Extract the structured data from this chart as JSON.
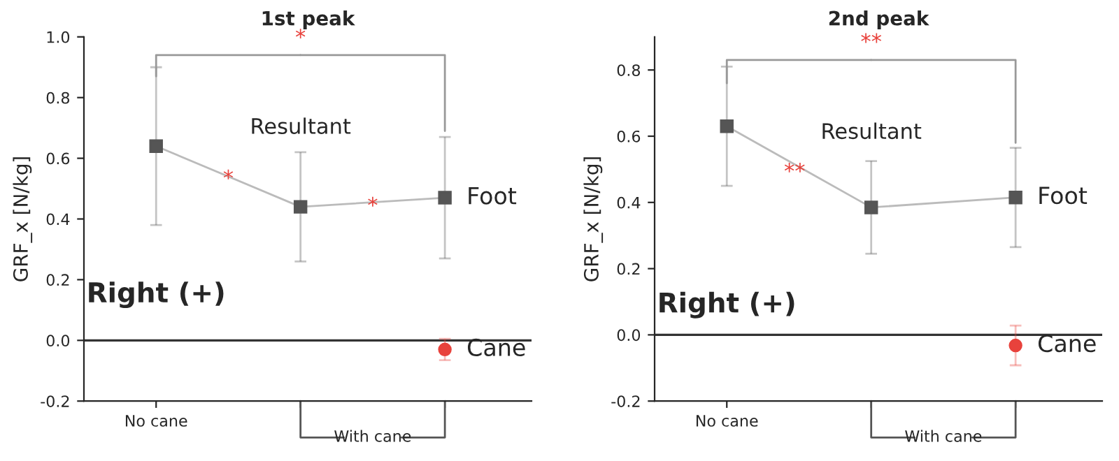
{
  "chart_data": [
    {
      "type": "line",
      "title": "1st peak",
      "ylabel": "GRF_x [N/kg]",
      "categories": [
        "No cane",
        null,
        null
      ],
      "series": [
        {
          "name": "Foot",
          "color": "#555555",
          "values": [
            0.64,
            0.44,
            0.47
          ],
          "errors": [
            0.26,
            0.18,
            0.2
          ],
          "marker": "square"
        },
        {
          "name": "Cane",
          "color": "#e8423c",
          "values": [
            null,
            null,
            -0.03
          ],
          "errors": [
            null,
            null,
            0.035
          ],
          "marker": "circle",
          "type": "scatter"
        }
      ],
      "annotations": [
        "*",
        "*",
        "*",
        "Resultant",
        "Right (+)",
        "With cane"
      ],
      "ref_lines": [
        {
          "axis": "y",
          "value": 0,
          "color": "#333333"
        }
      ],
      "ylim": [
        -0.2,
        1.0
      ],
      "yticks": [
        {
          "value": -0.2,
          "label": "-0.2"
        },
        {
          "value": 0,
          "label": "0.0"
        },
        0.2,
        0.4,
        0.6,
        0.8,
        {
          "value": 1,
          "label": "1.0"
        }
      ],
      "grid": false,
      "legend": false
    },
    {
      "type": "line",
      "title": "2nd peak",
      "ylabel": "GRF_x [N/kg]",
      "categories": [
        "No cane",
        null,
        null
      ],
      "series": [
        {
          "name": "Foot",
          "color": "#555555",
          "values": [
            0.63,
            0.385,
            0.415
          ],
          "errors": [
            0.18,
            0.14,
            0.15
          ],
          "marker": "square"
        },
        {
          "name": "Cane",
          "color": "#e8423c",
          "values": [
            null,
            null,
            -0.032
          ],
          "errors": [
            null,
            null,
            0.06
          ],
          "marker": "circle",
          "type": "scatter"
        }
      ],
      "annotations": [
        "**",
        "**",
        "Resultant",
        "Right (+)",
        "With cane"
      ],
      "ref_lines": [
        {
          "axis": "y",
          "value": 0,
          "color": "#333333"
        }
      ],
      "ylim": [
        -0.2,
        0.9
      ],
      "yticks": [
        {
          "value": -0.2,
          "label": "-0.2"
        },
        {
          "value": 0,
          "label": "0.0"
        },
        0.2,
        0.4,
        0.6,
        0.8
      ],
      "grid": false,
      "legend": false
    }
  ]
}
